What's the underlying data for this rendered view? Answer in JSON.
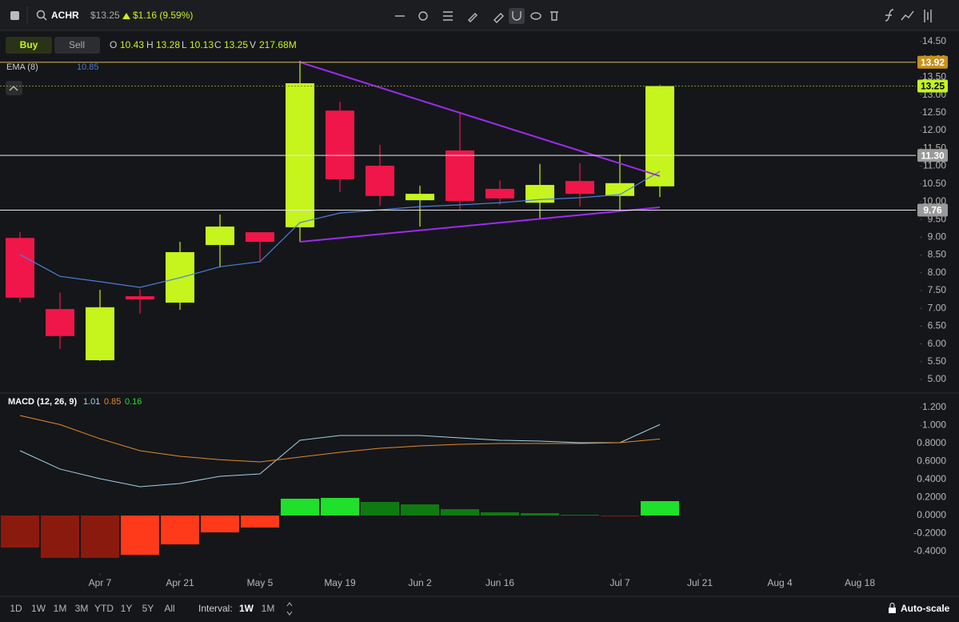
{
  "toolbar": {
    "symbol": "ACHR",
    "price": "$13.25",
    "change": "$1.16 (9.59%)"
  },
  "legend": {
    "buy": "Buy",
    "sell": "Sell",
    "o_label": "O",
    "h_label": "H",
    "l_label": "L",
    "c_label": "C",
    "v_label": "V",
    "volume": "217.68M"
  },
  "footer": {
    "ranges": [
      "1D",
      "1W",
      "1M",
      "3M",
      "YTD",
      "1Y",
      "5Y",
      "All"
    ],
    "interval_label": "Interval:",
    "intervals": [
      "1W",
      "1M"
    ],
    "autoscale": "Auto-scale"
  },
  "chart_data": [
    {
      "type": "candlestick",
      "xlim": [
        -0.5,
        22.5
      ],
      "ylim": [
        4.64,
        14.725
      ],
      "yticks": [
        {
          "value": 14.5,
          "label": "14.50"
        },
        {
          "value": 14,
          "label": "14.00"
        },
        {
          "value": 13.5,
          "label": "13.50"
        },
        {
          "value": 13,
          "label": "13.00"
        },
        {
          "value": 12.5,
          "label": "12.50"
        },
        {
          "value": 12,
          "label": "12.00"
        },
        {
          "value": 11.5,
          "label": "11.50"
        },
        {
          "value": 11,
          "label": "11.00"
        },
        {
          "value": 10.5,
          "label": "10.50"
        },
        {
          "value": 10,
          "label": "10.00"
        },
        {
          "value": 9.5,
          "label": "9.50"
        },
        {
          "value": 9,
          "label": "9.00"
        },
        {
          "value": 8.5,
          "label": "8.50"
        },
        {
          "value": 8,
          "label": "8.00"
        },
        {
          "value": 7.5,
          "label": "7.50"
        },
        {
          "value": 7,
          "label": "7.00"
        },
        {
          "value": 6.5,
          "label": "6.50"
        },
        {
          "value": 6,
          "label": "6.00"
        },
        {
          "value": 5.5,
          "label": "5.50"
        },
        {
          "value": 5,
          "label": "5.00"
        }
      ],
      "open": [
        8.98,
        6.98,
        5.54,
        7.34,
        7.16,
        8.78,
        9.14,
        9.28,
        12.56,
        11.01,
        10.04,
        11.44,
        10.36,
        9.97,
        10.58,
        10.16,
        10.43
      ],
      "high": [
        9.14,
        7.45,
        7.52,
        7.54,
        8.87,
        9.64,
        9.14,
        13.96,
        12.81,
        11.6,
        10.45,
        12.52,
        10.6,
        11.06,
        11.08,
        11.33,
        13.28
      ],
      "low": [
        7.16,
        5.86,
        5.52,
        6.85,
        6.96,
        8.15,
        8.29,
        8.87,
        10.27,
        9.88,
        9.3,
        9.77,
        9.91,
        9.52,
        9.86,
        9.77,
        10.13
      ],
      "close": [
        7.3,
        6.22,
        7.03,
        7.25,
        8.58,
        9.3,
        8.87,
        13.33,
        10.63,
        10.16,
        10.22,
        10.02,
        10.09,
        10.47,
        10.22,
        10.52,
        13.25
      ],
      "up_color": "#c6f41d",
      "down_color": "#f0164a",
      "ema": {
        "name": "EMA (8)",
        "color": "#4a7fd6",
        "values": [
          8.51,
          7.9,
          7.75,
          7.59,
          7.86,
          8.17,
          8.31,
          9.41,
          9.68,
          9.77,
          9.86,
          9.91,
          9.97,
          10.06,
          10.11,
          10.2,
          10.85
        ]
      },
      "price_lines": [
        {
          "price": 13.92,
          "color": "#d9b84a",
          "badge": "#c8901a",
          "text_color": "#ffffff",
          "dash": false
        },
        {
          "price": 13.25,
          "color": "#7e8f2a",
          "badge": "#c6f41d",
          "text_color": "#000000",
          "dash": true
        },
        {
          "price": {
            "value": 11.3,
            "label": "11.30"
          },
          "color": "#e8e8e8",
          "badge": "#9a9a9a",
          "text_color": "#ffffff",
          "dash": false
        },
        {
          "price": 9.76,
          "color": "#e8e8e8",
          "badge": "#9a9a9a",
          "text_color": "#ffffff",
          "dash": false
        }
      ],
      "trend_lines": [
        {
          "x": [
            7,
            16
          ],
          "y": [
            13.92,
            10.72
          ],
          "color": "#9d2bf0"
        },
        {
          "x": [
            7,
            16
          ],
          "y": [
            8.87,
            9.84
          ],
          "color": "#9d2bf0"
        }
      ]
    },
    {
      "type": "macd",
      "title": "MACD (12, 26, 9)",
      "xlim": [
        -0.5,
        22.5
      ],
      "ylim": [
        -0.542,
        1.351
      ],
      "yticks": [
        {
          "value": 1.2,
          "label": "1.200"
        },
        {
          "value": 1,
          "label": "1.000"
        },
        {
          "value": 0.8,
          "label": "0.8000"
        },
        {
          "value": 0.6,
          "label": "0.6000"
        },
        {
          "value": 0.4,
          "label": "0.4000"
        },
        {
          "value": 0.2,
          "label": "0.2000"
        },
        {
          "value": 0,
          "label": "0.0000"
        },
        {
          "value": -0.2,
          "label": "-0.2000"
        },
        {
          "value": -0.4,
          "label": "-0.4000"
        }
      ],
      "xticks": [
        {
          "value": 2,
          "label": "Apr 7"
        },
        {
          "value": 4,
          "label": "Apr 21"
        },
        {
          "value": 6,
          "label": "May 5"
        },
        {
          "value": 8,
          "label": "May 19"
        },
        {
          "value": 10,
          "label": "Jun 2"
        },
        {
          "value": 12,
          "label": "Jun 16"
        },
        {
          "value": 15,
          "label": "Jul 7"
        },
        {
          "value": 17,
          "label": "Jul 21"
        },
        {
          "value": 19,
          "label": "Aug 4"
        },
        {
          "value": 21,
          "label": "Aug 18"
        }
      ],
      "series": [
        {
          "color": "#9fd3e6",
          "values": [
            0.72,
            0.516,
            0.409,
            0.32,
            0.356,
            0.436,
            0.462,
            0.836,
            0.889,
            0.889,
            0.889,
            0.862,
            0.836,
            0.827,
            0.809,
            0.809,
            1.01
          ]
        },
        {
          "color": "#e08a2c",
          "values": [
            1.11,
            1.01,
            0.853,
            0.72,
            0.658,
            0.62,
            0.596,
            0.649,
            0.702,
            0.747,
            0.773,
            0.791,
            0.8,
            0.8,
            0.8,
            0.809,
            0.85
          ]
        }
      ],
      "histogram": {
        "values": [
          -0.356,
          -0.47,
          -0.47,
          -0.436,
          -0.32,
          -0.187,
          -0.133,
          0.187,
          0.196,
          0.151,
          0.124,
          0.071,
          0.036,
          0.027,
          0.009,
          -0.009,
          0.16
        ],
        "colors": [
          "#8b1a0e",
          "#8b1a0e",
          "#8b1a0e",
          "#ff3a1a",
          "#ff3a1a",
          "#ff3a1a",
          "#ff3a1a",
          "#1fe02a",
          "#1fe02a",
          "#0f7a12",
          "#0f7a12",
          "#0f7a12",
          "#0f7a12",
          "#0f7a12",
          "#0f7a12",
          "#8b1a0e",
          "#1fe02a"
        ]
      }
    }
  ]
}
